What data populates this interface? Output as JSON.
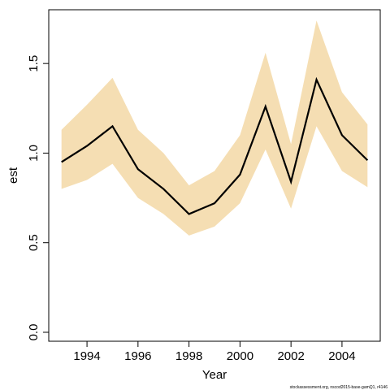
{
  "chart_data": {
    "type": "line",
    "xlabel": "Year",
    "ylabel": "est",
    "xlim": [
      1992.5,
      2005.5
    ],
    "ylim": [
      -0.05,
      1.8
    ],
    "x_ticks": [
      1994,
      1996,
      1998,
      2000,
      2002,
      2004
    ],
    "y_ticks": [
      0.0,
      0.5,
      1.0,
      1.5
    ],
    "x_tick_labels": [
      "1994",
      "1996",
      "1998",
      "2000",
      "2002",
      "2004"
    ],
    "y_tick_labels": [
      "0.0",
      "0.5",
      "1.0",
      "1.5"
    ],
    "x": [
      1993,
      1994,
      1995,
      1996,
      1997,
      1998,
      1999,
      2000,
      2001,
      2002,
      2003,
      2004,
      2005
    ],
    "series": [
      {
        "values": [
          0.95,
          1.04,
          1.15,
          0.91,
          0.8,
          0.66,
          0.72,
          0.88,
          1.26,
          0.84,
          1.41,
          1.1,
          0.96
        ],
        "lower": [
          0.8,
          0.85,
          0.94,
          0.75,
          0.66,
          0.54,
          0.59,
          0.72,
          1.02,
          0.69,
          1.15,
          0.9,
          0.81
        ],
        "upper": [
          1.13,
          1.27,
          1.42,
          1.13,
          1.0,
          0.82,
          0.9,
          1.1,
          1.56,
          1.05,
          1.74,
          1.34,
          1.16
        ]
      }
    ],
    "grid": false,
    "colors": {
      "line": "#000000",
      "band": "#f5deb3",
      "axis": "#000000"
    }
  },
  "caption": "stockassessment.org, nscod2015-base-gamQ1, r4146"
}
